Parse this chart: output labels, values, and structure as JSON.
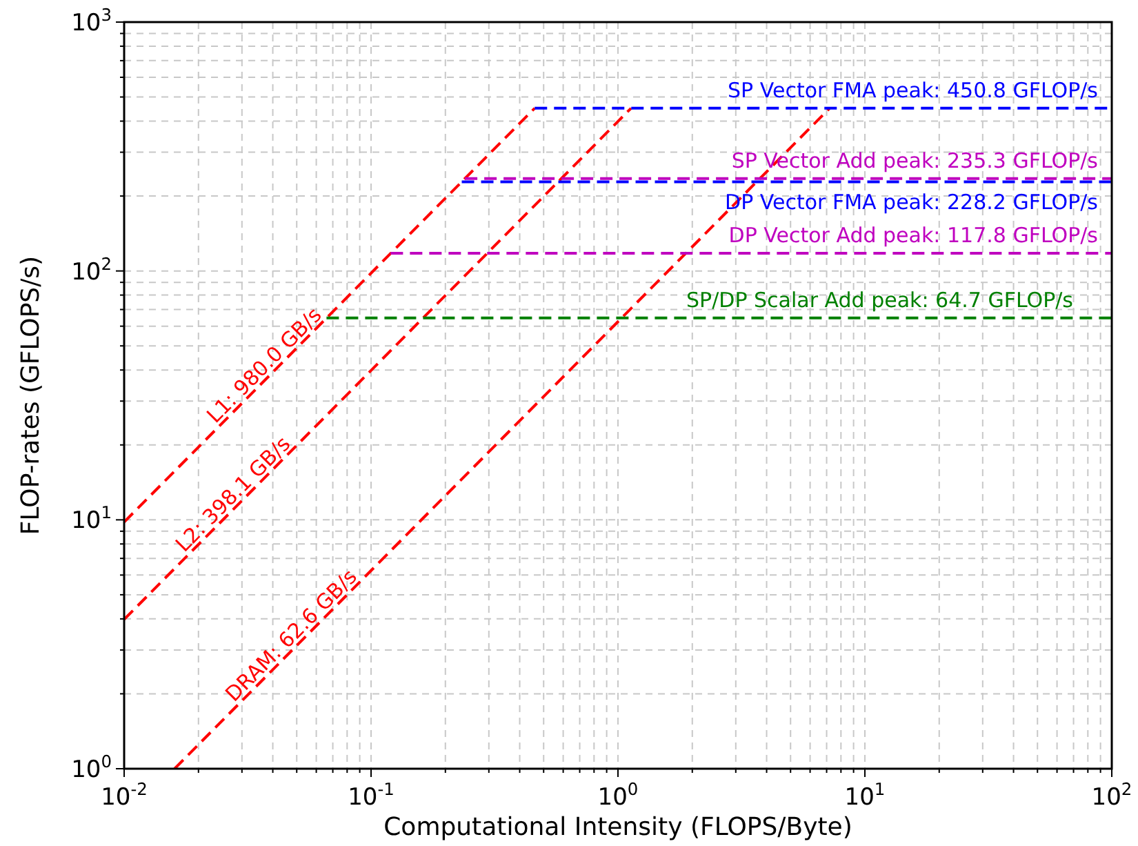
{
  "chart_data": {
    "type": "line",
    "xlabel": "Computational Intensity (FLOPS/Byte)",
    "ylabel": "FLOP-rates (GFLOPS/s)",
    "log": "xy",
    "grid": true,
    "line_style": "dashed",
    "xlim": [
      0.01,
      100
    ],
    "ylim": [
      1,
      1000
    ],
    "xticks": [
      {
        "value": 0.01,
        "label": "10$^{-2}$"
      },
      {
        "value": 0.02,
        "label": null
      },
      {
        "value": 0.03,
        "label": null
      },
      {
        "value": 0.04,
        "label": null
      },
      {
        "value": 0.05,
        "label": null
      },
      {
        "value": 0.06,
        "label": null
      },
      {
        "value": 0.07,
        "label": null
      },
      {
        "value": 0.08,
        "label": null
      },
      {
        "value": 0.09,
        "label": null
      },
      {
        "value": 0.1,
        "label": "10$^{-1}$"
      },
      {
        "value": 0.2,
        "label": null
      },
      {
        "value": 0.3,
        "label": null
      },
      {
        "value": 0.4,
        "label": null
      },
      {
        "value": 0.5,
        "label": null
      },
      {
        "value": 0.6,
        "label": null
      },
      {
        "value": 0.7,
        "label": null
      },
      {
        "value": 0.8,
        "label": null
      },
      {
        "value": 0.9,
        "label": null
      },
      {
        "value": 1,
        "label": "10$^{0}$"
      },
      {
        "value": 2,
        "label": null
      },
      {
        "value": 3,
        "label": null
      },
      {
        "value": 4,
        "label": null
      },
      {
        "value": 5,
        "label": null
      },
      {
        "value": 6,
        "label": null
      },
      {
        "value": 7,
        "label": null
      },
      {
        "value": 8,
        "label": null
      },
      {
        "value": 9,
        "label": null
      },
      {
        "value": 10,
        "label": "10$^{1}$"
      },
      {
        "value": 20,
        "label": null
      },
      {
        "value": 30,
        "label": null
      },
      {
        "value": 40,
        "label": null
      },
      {
        "value": 50,
        "label": null
      },
      {
        "value": 60,
        "label": null
      },
      {
        "value": 70,
        "label": null
      },
      {
        "value": 80,
        "label": null
      },
      {
        "value": 90,
        "label": null
      },
      {
        "value": 100,
        "label": "10$^{2}$"
      }
    ],
    "yticks": [
      {
        "value": 1,
        "label": "10$^{0}$"
      },
      {
        "value": 2,
        "label": null
      },
      {
        "value": 3,
        "label": null
      },
      {
        "value": 4,
        "label": null
      },
      {
        "value": 5,
        "label": null
      },
      {
        "value": 6,
        "label": null
      },
      {
        "value": 7,
        "label": null
      },
      {
        "value": 8,
        "label": null
      },
      {
        "value": 9,
        "label": null
      },
      {
        "value": 10,
        "label": "10$^{1}$"
      },
      {
        "value": 20,
        "label": null
      },
      {
        "value": 30,
        "label": null
      },
      {
        "value": 40,
        "label": null
      },
      {
        "value": 50,
        "label": null
      },
      {
        "value": 60,
        "label": null
      },
      {
        "value": 70,
        "label": null
      },
      {
        "value": 80,
        "label": null
      },
      {
        "value": 90,
        "label": null
      },
      {
        "value": 100,
        "label": "10$^{2}$"
      },
      {
        "value": 200,
        "label": null
      },
      {
        "value": 300,
        "label": null
      },
      {
        "value": 400,
        "label": null
      },
      {
        "value": 500,
        "label": null
      },
      {
        "value": 600,
        "label": null
      },
      {
        "value": 700,
        "label": null
      },
      {
        "value": 800,
        "label": null
      },
      {
        "value": 900,
        "label": null
      },
      {
        "value": 1000,
        "label": "10$^{3}$"
      }
    ],
    "series": [
      {
        "name": "L1: 980.0 GB/s",
        "color": "#ff0000",
        "x": [
          0.01,
          0.46
        ],
        "values": [
          9.8,
          450.8
        ]
      },
      {
        "name": "L2: 398.1 GB/s",
        "color": "#ff0000",
        "x": [
          0.01,
          1.13
        ],
        "values": [
          3.98,
          450.8
        ]
      },
      {
        "name": "DRAM: 62.6 GB/s",
        "color": "#ff0000",
        "x": [
          0.016,
          7.2
        ],
        "values": [
          1,
          450.8
        ]
      },
      {
        "name": "SP Vector FMA peak: 450.8 GFLOP/s",
        "color": "#0000ff",
        "x": [
          0.46,
          100
        ],
        "values": [
          450.8,
          450.8
        ]
      },
      {
        "name": "SP Vector Add peak: 235.3 GFLOP/s",
        "color": "#bf00bf",
        "x": [
          0.24,
          100
        ],
        "values": [
          235.3,
          235.3
        ]
      },
      {
        "name": "DP Vector FMA peak: 228.2 GFLOP/s",
        "color": "#0000ff",
        "x": [
          0.233,
          100
        ],
        "values": [
          228.2,
          228.2
        ]
      },
      {
        "name": "DP Vector Add peak: 117.8 GFLOP/s",
        "color": "#bf00bf",
        "x": [
          0.12,
          100
        ],
        "values": [
          117.8,
          117.8
        ]
      },
      {
        "name": "SP/DP Scalar Add peak: 64.7 GFLOP/s",
        "color": "#008000",
        "x": [
          0.066,
          100
        ],
        "values": [
          64.7,
          64.7
        ]
      }
    ]
  }
}
